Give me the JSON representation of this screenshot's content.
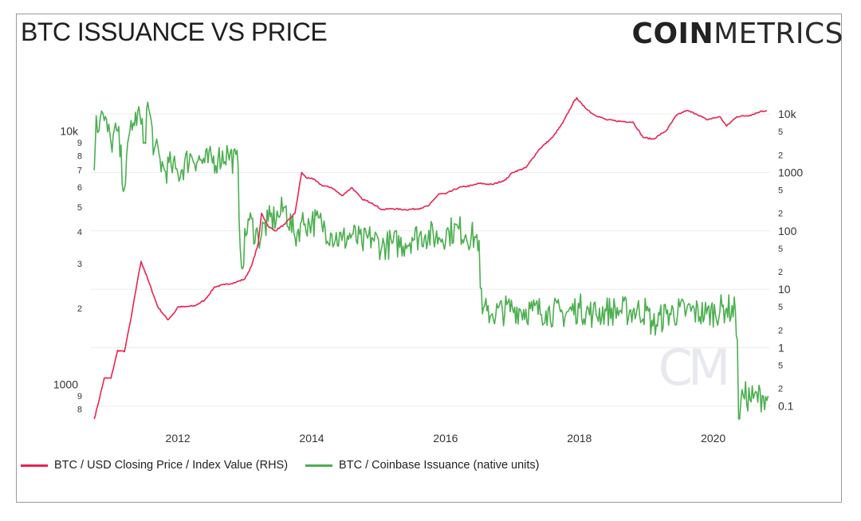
{
  "title": "BTC ISSUANCE VS PRICE",
  "logo": {
    "bold": "COIN",
    "thin": "METRICS"
  },
  "watermark": "CM",
  "colors": {
    "price": "#e8234f",
    "issuance": "#4caf50",
    "grid": "#ececec",
    "tick": "#333333"
  },
  "chart_data": {
    "type": "line",
    "title": "BTC ISSUANCE VS PRICE",
    "grid": true,
    "legend_position": "bottom-left",
    "x_axis": {
      "range": [
        2010.7,
        2020.85
      ],
      "ticks": [
        "2012",
        "2014",
        "2016",
        "2018",
        "2020"
      ],
      "tick_values": [
        2012,
        2014,
        2016,
        2018,
        2020
      ]
    },
    "y_left": {
      "scale": "log",
      "range": [
        730,
        14000
      ],
      "major_labels": [
        "10k",
        "1000"
      ],
      "major_values": [
        10000,
        1000
      ],
      "minor_labels": [
        "9",
        "8",
        "7",
        "6",
        "5",
        "4",
        "3",
        "2",
        "9",
        "8"
      ],
      "minor_values": [
        9000,
        8000,
        7000,
        6000,
        5000,
        4000,
        3000,
        2000,
        900,
        800
      ]
    },
    "y_right": {
      "scale": "log",
      "range": [
        0.06,
        22000
      ],
      "major_labels": [
        "10k",
        "1000",
        "100",
        "10",
        "1",
        "0.1"
      ],
      "major_values": [
        10000,
        1000,
        100,
        10,
        1,
        0.1
      ],
      "minor_labels": [
        "5",
        "2",
        "5",
        "2",
        "5",
        "2",
        "5",
        "2",
        "5",
        "2"
      ],
      "minor_values": [
        5000,
        2000,
        500,
        200,
        50,
        20,
        5,
        2,
        0.5,
        0.2
      ]
    },
    "series": [
      {
        "name": "BTC / USD Closing Price / Index Value (RHS)",
        "axis": "right",
        "x": [
          2010.75,
          2010.8,
          2010.9,
          2011.0,
          2011.1,
          2011.2,
          2011.3,
          2011.4,
          2011.45,
          2011.55,
          2011.7,
          2011.85,
          2011.95,
          2012.0,
          2012.1,
          2012.25,
          2012.4,
          2012.55,
          2012.7,
          2012.85,
          2013.0,
          2013.1,
          2013.2,
          2013.25,
          2013.35,
          2013.45,
          2013.6,
          2013.75,
          2013.85,
          2013.92,
          2014.0,
          2014.15,
          2014.3,
          2014.45,
          2014.6,
          2014.75,
          2014.9,
          2015.05,
          2015.2,
          2015.4,
          2015.6,
          2015.75,
          2015.9,
          2016.0,
          2016.2,
          2016.4,
          2016.5,
          2016.7,
          2016.9,
          2017.0,
          2017.2,
          2017.4,
          2017.6,
          2017.75,
          2017.9,
          2017.96,
          2018.05,
          2018.2,
          2018.4,
          2018.6,
          2018.8,
          2018.95,
          2019.1,
          2019.3,
          2019.45,
          2019.6,
          2019.75,
          2019.9,
          2020.1,
          2020.2,
          2020.35,
          2020.55,
          2020.7,
          2020.8
        ],
        "y": [
          0.06,
          0.1,
          0.3,
          0.3,
          0.9,
          0.85,
          3.2,
          15,
          30,
          15,
          5,
          3,
          4,
          5,
          5,
          5.2,
          6.5,
          11,
          12,
          13,
          15,
          25,
          60,
          200,
          120,
          100,
          130,
          200,
          1000,
          800,
          800,
          600,
          550,
          400,
          550,
          350,
          300,
          230,
          240,
          230,
          240,
          270,
          430,
          430,
          550,
          600,
          650,
          620,
          750,
          1000,
          1200,
          2500,
          4000,
          7000,
          15000,
          19000,
          14000,
          10000,
          8000,
          7500,
          7300,
          4000,
          3700,
          5200,
          9500,
          11500,
          10000,
          8000,
          9000,
          6200,
          9000,
          9500,
          11000,
          11500
        ]
      },
      {
        "name": "BTC / Coinbase Issuance (native units)",
        "axis": "left",
        "x": [
          2010.75,
          2010.78,
          2010.82,
          2010.86,
          2010.9,
          2011.0,
          2011.1,
          2011.2,
          2011.3,
          2011.35,
          2011.4,
          2011.5,
          2011.55,
          2011.65,
          2011.8,
          2011.9,
          2012.0,
          2012.2,
          2012.4,
          2012.6,
          2012.75,
          2012.9,
          2012.93,
          2012.95,
          2013.05,
          2013.2,
          2013.35,
          2013.5,
          2013.6,
          2013.75,
          2013.85,
          2013.9,
          2014.0,
          2014.15,
          2014.3,
          2014.45,
          2014.6,
          2014.75,
          2014.9,
          2015.05,
          2015.2,
          2015.4,
          2015.5,
          2015.7,
          2015.9,
          2016.05,
          2016.2,
          2016.3,
          2016.45,
          2016.5,
          2016.52,
          2016.55,
          2016.62,
          2016.7,
          2017.0,
          2017.3,
          2017.5,
          2017.75,
          2018.0,
          2018.2,
          2018.4,
          2018.6,
          2018.8,
          2019.0,
          2019.1,
          2019.3,
          2019.6,
          2019.9,
          2020.2,
          2020.33,
          2020.36,
          2020.38,
          2020.41,
          2020.45,
          2020.6,
          2020.75,
          2020.82
        ],
        "y": [
          7000,
          11500,
          10000,
          12000,
          11000,
          9000,
          10000,
          5900,
          11000,
          10500,
          12000,
          9000,
          13000,
          8500,
          7000,
          7300,
          6800,
          8000,
          7500,
          7800,
          8200,
          7300,
          3500,
          2900,
          4500,
          3800,
          4400,
          4600,
          5000,
          3800,
          4400,
          4300,
          4400,
          4300,
          3900,
          3700,
          3900,
          3600,
          3800,
          3500,
          3600,
          3600,
          3800,
          3900,
          3800,
          4000,
          4100,
          3900,
          3800,
          3700,
          2400,
          1900,
          1950,
          1900,
          2000,
          1950,
          1950,
          1900,
          2000,
          1900,
          1950,
          1950,
          1950,
          1950,
          1700,
          1900,
          1950,
          1900,
          2000,
          1950,
          1500,
          730,
          840,
          900,
          880,
          900,
          900
        ]
      }
    ]
  }
}
